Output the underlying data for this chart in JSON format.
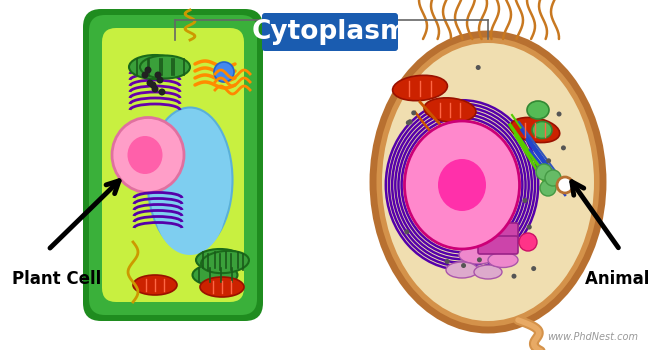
{
  "title": "Cytoplasm",
  "title_bg": "#1a5cb0",
  "title_color": "white",
  "plant_cell_label": "Plant Cell",
  "animal_cell_label": "Animal Cell",
  "watermark": "www.PhdNest.com",
  "bg_color": "white"
}
